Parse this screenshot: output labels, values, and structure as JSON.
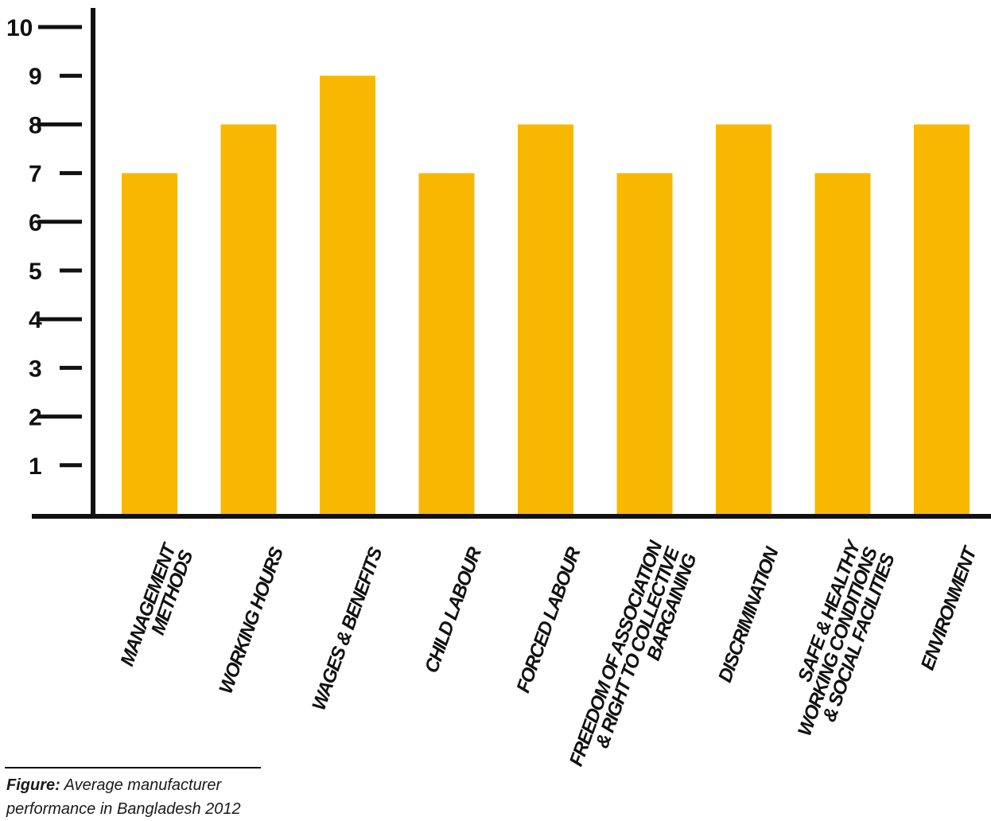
{
  "chart_data": {
    "type": "bar",
    "categories": [
      [
        "MANAGEMENT",
        "METHODS"
      ],
      [
        "WORKING HOURS"
      ],
      [
        "WAGES & BENEFITS"
      ],
      [
        "CHILD LABOUR"
      ],
      [
        "FORCED LABOUR"
      ],
      [
        "FREEDOM OF ASSOCIATION",
        "& RIGHT TO COLLECTIVE",
        "BARGAINING"
      ],
      [
        "DISCRIMINATION"
      ],
      [
        "SAFE & HEALTHY",
        "WORKING CONDITIONS",
        "& SOCIAL FACILITIES"
      ],
      [
        "ENVIRONMENT"
      ]
    ],
    "values": [
      7,
      8,
      9,
      7,
      8,
      7,
      8,
      7,
      8
    ],
    "y_ticks": [
      1,
      2,
      3,
      4,
      5,
      6,
      7,
      8,
      9,
      10
    ],
    "ylim": [
      0,
      10
    ],
    "bar_color": "#F8B800",
    "axis_color": "#111111",
    "grid": false,
    "legend": "none"
  },
  "caption": {
    "prefix": "Figure:",
    "text": "Average manufacturer performance in Bangladesh 2012"
  }
}
